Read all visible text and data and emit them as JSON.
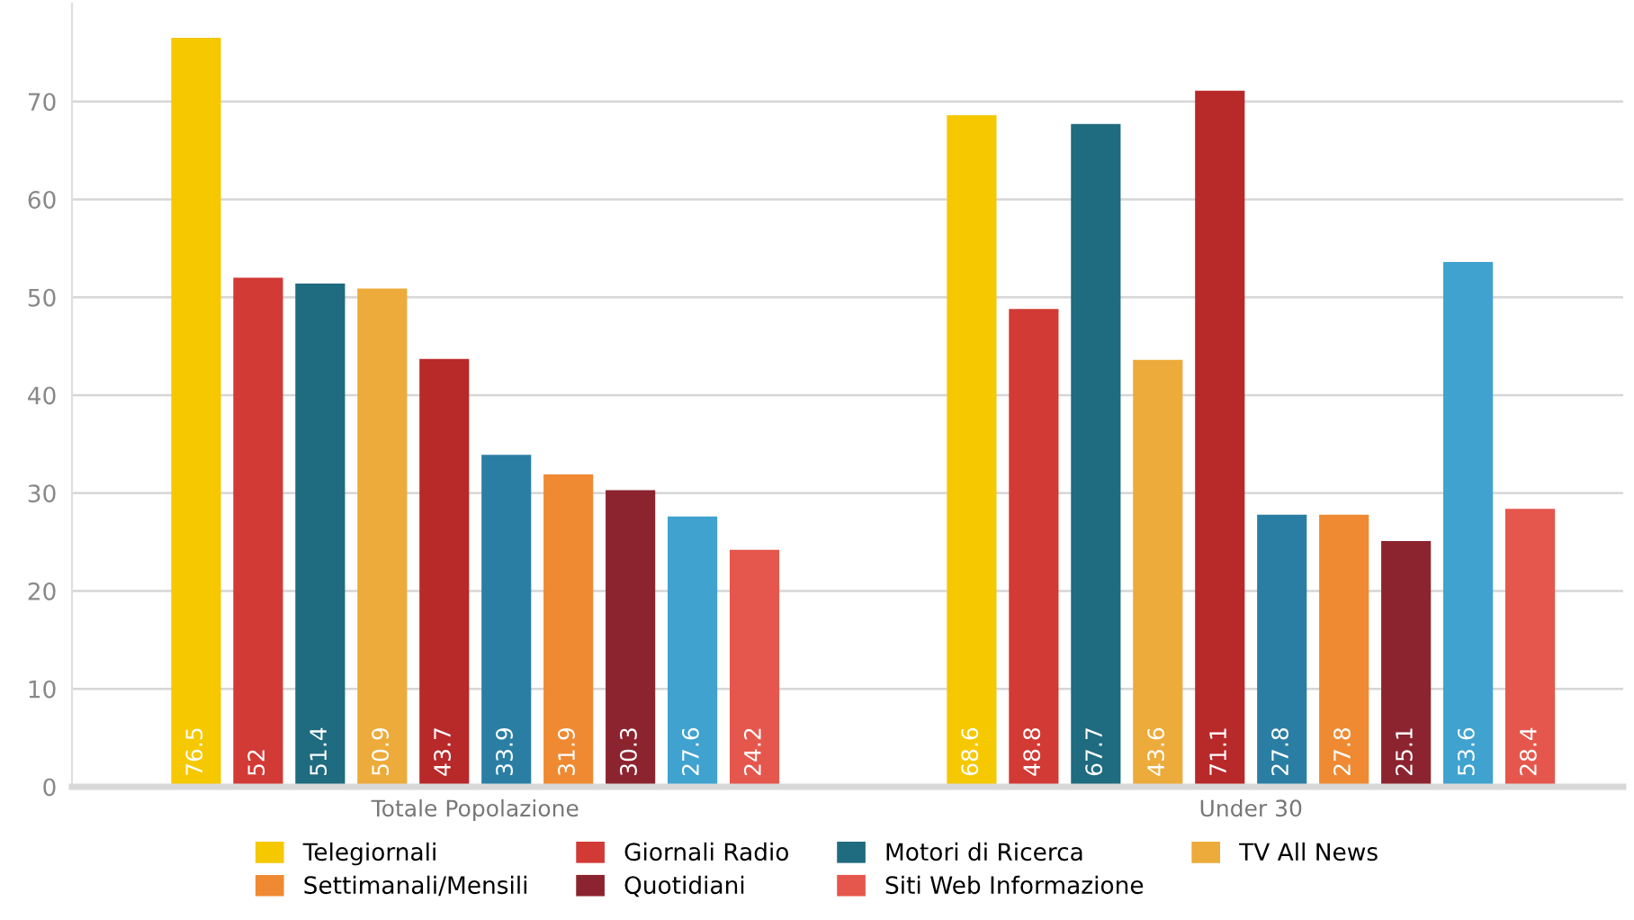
{
  "chart_data": {
    "type": "bar",
    "categories": [
      "Totale Popolazione",
      "Under 30"
    ],
    "series": [
      {
        "name": "Telegiornali",
        "color": "#f5c800",
        "values": [
          76.5,
          68.6
        ]
      },
      {
        "name": "Giornali Radio",
        "color": "#d23a35",
        "values": [
          52,
          48.8
        ]
      },
      {
        "name": "Motori di Ricerca",
        "color": "#1f6b80",
        "values": [
          51.4,
          67.7
        ]
      },
      {
        "name": "TV All News",
        "color": "#ecab3a",
        "values": [
          50.9,
          43.6
        ]
      },
      {
        "color": "#b8292a",
        "values": [
          43.7,
          71.1
        ]
      },
      {
        "color": "#2b7ea3",
        "values": [
          33.9,
          27.8
        ]
      },
      {
        "name": "Settimanali/Mensili",
        "color": "#ef8a33",
        "values": [
          31.9,
          27.8
        ]
      },
      {
        "name": "Quotidiani",
        "color": "#8c2430",
        "values": [
          30.3,
          25.1
        ]
      },
      {
        "color": "#3fa2cf",
        "values": [
          27.6,
          53.6
        ]
      },
      {
        "name": "Siti Web Informazione",
        "color": "#e5574d",
        "values": [
          24.2,
          28.4
        ]
      }
    ],
    "ylim": [
      0,
      80
    ],
    "yticks": [
      0,
      10,
      20,
      30,
      40,
      50,
      60,
      70
    ],
    "grid": "y",
    "legend": "bottom",
    "data_labels": true
  }
}
